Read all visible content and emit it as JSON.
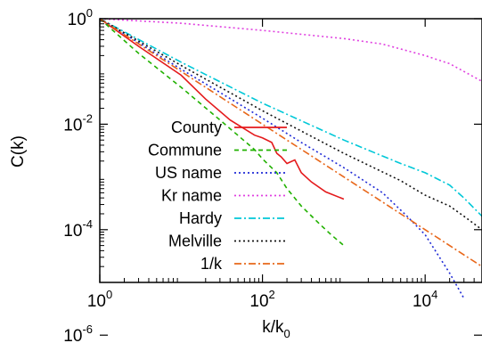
{
  "chart_data": {
    "type": "line",
    "xlabel": "k/k",
    "xlabel_sub": "0",
    "ylabel": "C(k)",
    "x_scale": "log",
    "y_scale": "log",
    "xlim": [
      1,
      50000
    ],
    "ylim": [
      1e-05,
      1
    ],
    "x_ticks": [
      {
        "value": 1,
        "base": "10",
        "exp": "0"
      },
      {
        "value": 100,
        "base": "10",
        "exp": "2"
      },
      {
        "value": 10000,
        "base": "10",
        "exp": "4"
      }
    ],
    "y_ticks": [
      {
        "value": 1,
        "base": "10",
        "exp": "0"
      },
      {
        "value": 0.01,
        "base": "10",
        "exp": "-2"
      },
      {
        "value": 0.0001,
        "base": "10",
        "exp": "-4"
      },
      {
        "value": 1e-06,
        "base": "10",
        "exp": "-6"
      }
    ],
    "grid": false,
    "legend_position": "left-center",
    "series": [
      {
        "name": "County",
        "color": "#e41a1c",
        "dash": "solid",
        "points": [
          [
            1,
            1
          ],
          [
            3,
            0.3
          ],
          [
            10,
            0.085
          ],
          [
            20,
            0.03
          ],
          [
            40,
            0.012
          ],
          [
            80,
            0.0062
          ],
          [
            100,
            0.0055
          ],
          [
            130,
            0.0045
          ],
          [
            150,
            0.0028
          ],
          [
            170,
            0.0024
          ],
          [
            200,
            0.0018
          ],
          [
            250,
            0.0021
          ],
          [
            300,
            0.0012
          ],
          [
            400,
            0.0008
          ],
          [
            600,
            0.00052
          ],
          [
            1000,
            0.00038
          ]
        ]
      },
      {
        "name": "Commune",
        "color": "#21b100",
        "dash": "5,4",
        "points": [
          [
            1,
            1
          ],
          [
            3,
            0.22
          ],
          [
            10,
            0.05
          ],
          [
            30,
            0.012
          ],
          [
            80,
            0.0033
          ],
          [
            100,
            0.0022
          ],
          [
            150,
            0.0012
          ],
          [
            200,
            0.0006
          ],
          [
            300,
            0.00028
          ],
          [
            500,
            0.00013
          ],
          [
            700,
            8e-05
          ],
          [
            1000,
            5e-05
          ]
        ]
      },
      {
        "name": "US name",
        "color": "#1f2ad6",
        "dash": "2,3",
        "points": [
          [
            1,
            1
          ],
          [
            3,
            0.35
          ],
          [
            10,
            0.11
          ],
          [
            30,
            0.04
          ],
          [
            100,
            0.013
          ],
          [
            300,
            0.0045
          ],
          [
            1000,
            0.0015
          ],
          [
            3000,
            0.0005
          ],
          [
            6000,
            0.00018
          ],
          [
            10000,
            8e-05
          ],
          [
            15000,
            3e-05
          ],
          [
            20000,
            1.5e-05
          ],
          [
            30000,
            5e-06
          ]
        ]
      },
      {
        "name": "Kr name",
        "color": "#e040e0",
        "dash": "2,3",
        "points": [
          [
            1,
            1
          ],
          [
            10,
            0.82
          ],
          [
            100,
            0.6
          ],
          [
            1000,
            0.42
          ],
          [
            3000,
            0.33
          ],
          [
            10000,
            0.2
          ],
          [
            20000,
            0.14
          ],
          [
            30000,
            0.1
          ],
          [
            50000,
            0.065
          ]
        ]
      },
      {
        "name": "Hardy",
        "color": "#00c8d8",
        "dash": "8,3,2,3",
        "points": [
          [
            1,
            1
          ],
          [
            10,
            0.15
          ],
          [
            100,
            0.025
          ],
          [
            1000,
            0.005
          ],
          [
            5000,
            0.0018
          ],
          [
            10000,
            0.0012
          ],
          [
            20000,
            0.0007
          ],
          [
            30000,
            0.0004
          ],
          [
            50000,
            0.00018
          ]
        ]
      },
      {
        "name": "Melville",
        "color": "#111111",
        "dash": "2,3",
        "points": [
          [
            1,
            1
          ],
          [
            10,
            0.13
          ],
          [
            100,
            0.018
          ],
          [
            1000,
            0.0028
          ],
          [
            5000,
            0.00085
          ],
          [
            10000,
            0.00045
          ],
          [
            20000,
            0.00028
          ],
          [
            30000,
            0.00018
          ],
          [
            50000,
            0.0001
          ]
        ]
      },
      {
        "name": "1/k",
        "color": "#e8671a",
        "dash": "8,3,2,3",
        "points": [
          [
            1,
            1
          ],
          [
            50000,
            2e-05
          ]
        ]
      }
    ]
  }
}
